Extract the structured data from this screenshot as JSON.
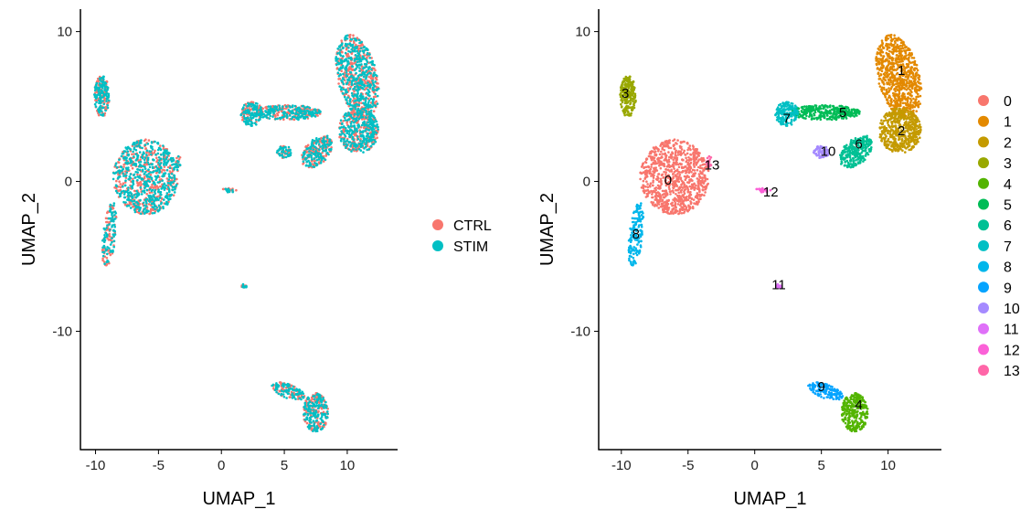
{
  "chart_data": [
    {
      "type": "scatter",
      "panel": "left",
      "xlabel": "UMAP_1",
      "ylabel": "UMAP_2",
      "xlim": [
        -11.2,
        14.0
      ],
      "ylim": [
        -17.9,
        11.5
      ],
      "xticks": [
        -10,
        -5,
        0,
        5,
        10
      ],
      "yticks": [
        -10,
        0,
        10
      ],
      "grid": false,
      "color_by": "condition",
      "legend_position": "right",
      "legend": [
        {
          "label": "CTRL",
          "color": "#F8766D"
        },
        {
          "label": "STIM",
          "color": "#00BFC4"
        }
      ]
    },
    {
      "type": "scatter",
      "panel": "right",
      "xlabel": "UMAP_1",
      "ylabel": "UMAP_2",
      "xlim": [
        -11.7,
        14.0
      ],
      "ylim": [
        -17.9,
        11.5
      ],
      "xticks": [
        -10,
        -5,
        0,
        5,
        10
      ],
      "yticks": [
        -10,
        0,
        10
      ],
      "grid": false,
      "color_by": "cluster",
      "legend_position": "right",
      "clusters": [
        {
          "label": "0",
          "color": "#F8766D",
          "center": [
            -6.0,
            0.3
          ],
          "spread": [
            2.6,
            2.5
          ],
          "n": 900,
          "label_at": [
            -6.5,
            0.1
          ]
        },
        {
          "label": "1",
          "color": "#E38900",
          "center": [
            10.8,
            7.0
          ],
          "spread": [
            1.6,
            2.8
          ],
          "n": 750,
          "label_at": [
            11.0,
            7.4
          ]
        },
        {
          "label": "2",
          "color": "#C49A00",
          "center": [
            10.9,
            3.4
          ],
          "spread": [
            1.6,
            1.5
          ],
          "n": 500,
          "label_at": [
            11.0,
            3.4
          ]
        },
        {
          "label": "3",
          "color": "#99A800",
          "center": [
            -9.5,
            5.7
          ],
          "spread": [
            0.6,
            1.4
          ],
          "n": 220,
          "label_at": [
            -9.7,
            5.9
          ]
        },
        {
          "label": "4",
          "color": "#53B400",
          "center": [
            7.5,
            -15.4
          ],
          "spread": [
            1.0,
            1.3
          ],
          "n": 300,
          "label_at": [
            7.8,
            -14.9
          ]
        },
        {
          "label": "5",
          "color": "#00BC56",
          "center": [
            5.3,
            4.6
          ],
          "spread": [
            2.6,
            0.5
          ],
          "n": 320,
          "label_at": [
            6.6,
            4.6
          ]
        },
        {
          "label": "6",
          "color": "#00C094",
          "center": [
            7.6,
            2.0
          ],
          "spread": [
            1.1,
            1.1
          ],
          "n": 260,
          "label_at": [
            7.8,
            2.5
          ]
        },
        {
          "label": "7",
          "color": "#00BFC4",
          "center": [
            2.4,
            4.5
          ],
          "spread": [
            0.9,
            0.8
          ],
          "n": 160,
          "label_at": [
            2.4,
            4.2
          ]
        },
        {
          "label": "8",
          "color": "#00B6EB",
          "center": [
            -8.9,
            -3.6
          ],
          "spread": [
            0.5,
            2.2
          ],
          "n": 150,
          "label_at": [
            -8.9,
            -3.5
          ]
        },
        {
          "label": "9",
          "color": "#06A4FF",
          "center": [
            5.3,
            -14.0
          ],
          "spread": [
            1.3,
            0.5
          ],
          "n": 140,
          "label_at": [
            5.0,
            -13.7
          ]
        },
        {
          "label": "10",
          "color": "#A58AFF",
          "center": [
            5.0,
            2.0
          ],
          "spread": [
            0.6,
            0.45
          ],
          "n": 60,
          "label_at": [
            5.5,
            2.0
          ]
        },
        {
          "label": "11",
          "color": "#DF70F8",
          "center": [
            1.8,
            -7.0
          ],
          "spread": [
            0.2,
            0.15
          ],
          "n": 20,
          "label_at": [
            1.8,
            -6.9
          ]
        },
        {
          "label": "12",
          "color": "#FB61D7",
          "center": [
            0.6,
            -0.6
          ],
          "spread": [
            0.6,
            0.15
          ],
          "n": 25,
          "label_at": [
            1.2,
            -0.7
          ]
        },
        {
          "label": "13",
          "color": "#FF66A8",
          "center": [
            -3.4,
            1.3
          ],
          "spread": [
            0.25,
            0.4
          ],
          "n": 20,
          "label_at": [
            -3.2,
            1.1
          ]
        }
      ]
    }
  ]
}
